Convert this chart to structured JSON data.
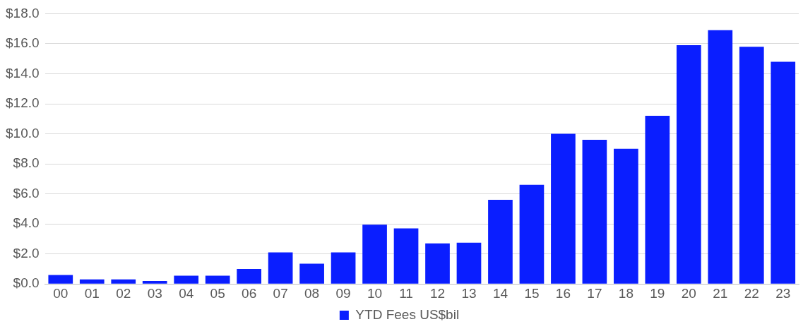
{
  "chart_data": {
    "type": "bar",
    "categories": [
      "00",
      "01",
      "02",
      "03",
      "04",
      "05",
      "06",
      "07",
      "08",
      "09",
      "10",
      "11",
      "12",
      "13",
      "14",
      "15",
      "16",
      "17",
      "18",
      "19",
      "20",
      "21",
      "22",
      "23"
    ],
    "series": [
      {
        "name": "YTD Fees US$bil",
        "color": "#0a1eff",
        "values": [
          0.6,
          0.3,
          0.3,
          0.2,
          0.55,
          0.55,
          1.0,
          2.1,
          1.35,
          2.1,
          3.95,
          3.7,
          2.7,
          2.75,
          5.6,
          6.6,
          10.0,
          9.6,
          9.0,
          11.2,
          15.9,
          16.9,
          15.8,
          14.8
        ]
      }
    ],
    "ylim": [
      0,
      18
    ],
    "yticks": [
      {
        "value": 0,
        "label": "$0.0"
      },
      {
        "value": 2,
        "label": "$2.0"
      },
      {
        "value": 4,
        "label": "$4.0"
      },
      {
        "value": 6,
        "label": "$6.0"
      },
      {
        "value": 8,
        "label": "$8.0"
      },
      {
        "value": 10,
        "label": "$10.0"
      },
      {
        "value": 12,
        "label": "$12.0"
      },
      {
        "value": 14,
        "label": "$14.0"
      },
      {
        "value": 16,
        "label": "$16.0"
      },
      {
        "value": 18,
        "label": "$18.0"
      }
    ],
    "grid": "y",
    "legend": "bottom"
  }
}
